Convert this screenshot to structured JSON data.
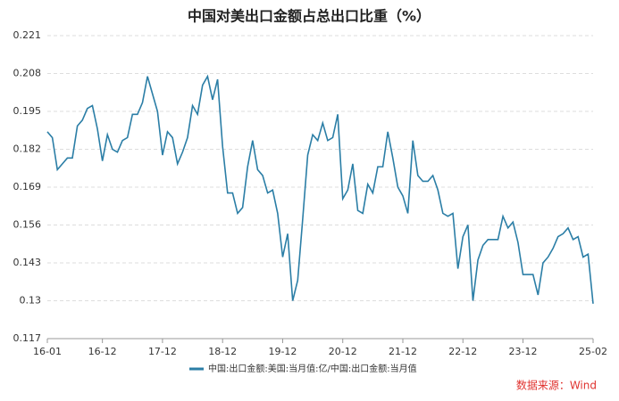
{
  "chart_data": {
    "type": "line",
    "title": "中国对美出口金额占总出口比重（%）",
    "source": "数据来源：Wind",
    "categories": [
      "16-01",
      null,
      null,
      null,
      null,
      null,
      null,
      null,
      null,
      null,
      null,
      "16-12",
      null,
      null,
      null,
      null,
      null,
      null,
      null,
      null,
      null,
      null,
      null,
      "17-12",
      null,
      null,
      null,
      null,
      null,
      null,
      null,
      null,
      null,
      null,
      null,
      "18-12",
      null,
      null,
      null,
      null,
      null,
      null,
      null,
      null,
      null,
      null,
      null,
      "19-12",
      null,
      null,
      null,
      null,
      null,
      null,
      null,
      null,
      null,
      null,
      null,
      "20-12",
      null,
      null,
      null,
      null,
      null,
      null,
      null,
      null,
      null,
      null,
      null,
      "21-12",
      null,
      null,
      null,
      null,
      null,
      null,
      null,
      null,
      null,
      null,
      null,
      "22-12",
      null,
      null,
      null,
      null,
      null,
      null,
      null,
      null,
      null,
      null,
      null,
      "23-12",
      null,
      null,
      null,
      null,
      null,
      null,
      null,
      null,
      null,
      null,
      null,
      null,
      null,
      "25-02"
    ],
    "series": [
      {
        "name": "中国:出口金额:美国:当月值:亿/中国:出口金额:当月值",
        "color": "#2b7ea6",
        "values": [
          0.188,
          0.186,
          0.175,
          0.177,
          0.179,
          0.179,
          0.19,
          0.192,
          0.196,
          0.197,
          0.189,
          0.178,
          0.187,
          0.182,
          0.181,
          0.185,
          0.186,
          0.194,
          0.194,
          0.198,
          0.207,
          0.201,
          0.195,
          0.18,
          0.188,
          0.186,
          0.177,
          0.181,
          0.186,
          0.197,
          0.194,
          0.204,
          0.207,
          0.199,
          0.206,
          0.183,
          0.167,
          0.167,
          0.16,
          0.162,
          0.176,
          0.185,
          0.175,
          0.173,
          0.167,
          0.168,
          0.16,
          0.145,
          0.153,
          0.13,
          0.137,
          0.158,
          0.18,
          0.187,
          0.185,
          0.191,
          0.185,
          0.186,
          0.194,
          0.165,
          0.168,
          0.177,
          0.161,
          0.16,
          0.17,
          0.167,
          0.176,
          0.176,
          0.188,
          0.179,
          0.169,
          0.166,
          0.16,
          0.185,
          0.173,
          0.171,
          0.171,
          0.173,
          0.168,
          0.16,
          0.159,
          0.16,
          0.141,
          0.152,
          0.156,
          0.13,
          0.144,
          0.149,
          0.151,
          0.151,
          0.151,
          0.159,
          0.155,
          0.157,
          0.15,
          0.139,
          0.139,
          0.139,
          0.132,
          0.143,
          0.145,
          0.148,
          0.152,
          0.153,
          0.155,
          0.151,
          0.152,
          0.145,
          0.146,
          0.129
        ]
      }
    ],
    "ylim": [
      0.117,
      0.221
    ],
    "yticks": [
      0.117,
      0.13,
      0.143,
      0.156,
      0.169,
      0.182,
      0.195,
      0.208,
      0.221
    ],
    "grid": true
  }
}
